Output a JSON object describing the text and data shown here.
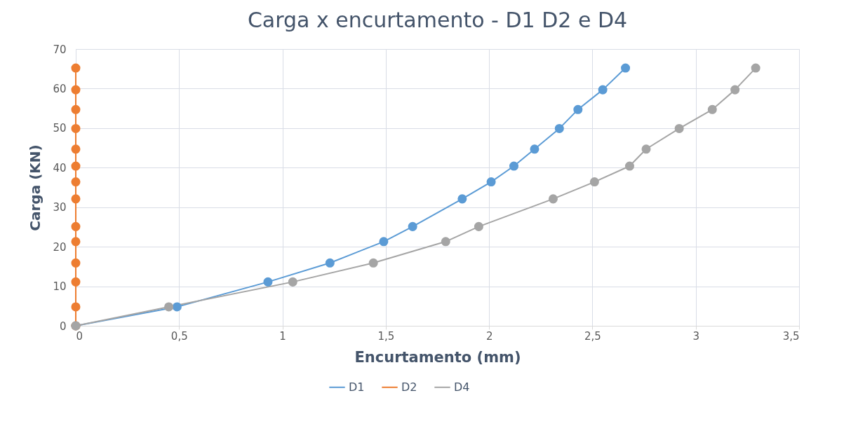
{
  "chart_data": {
    "type": "line",
    "title": "Carga x encurtamento - D1 D2 e D4",
    "xlabel": "Encurtamento (mm)",
    "ylabel": "Carga (KN)",
    "series": [
      {
        "name": "D1",
        "color": "#5b9bd5",
        "x": [
          0,
          0.49,
          0.93,
          1.23,
          1.49,
          1.63,
          1.87,
          2.01,
          2.12,
          2.22,
          2.34,
          2.43,
          2.55,
          2.66
        ],
        "values": [
          0,
          4.8,
          11.1,
          15.9,
          21.3,
          25.1,
          32.1,
          36.4,
          40.4,
          44.7,
          49.9,
          54.7,
          59.7,
          65.2
        ]
      },
      {
        "name": "D2",
        "color": "#ed7d31",
        "x": [
          0,
          0,
          0,
          0,
          0,
          0,
          0,
          0,
          0,
          0,
          0,
          0,
          0,
          0
        ],
        "values": [
          0,
          4.8,
          11.1,
          15.9,
          21.3,
          25.1,
          32.1,
          36.4,
          40.4,
          44.7,
          49.9,
          54.7,
          59.7,
          65.2
        ]
      },
      {
        "name": "D4",
        "color": "#a5a5a5",
        "x": [
          0,
          0.45,
          1.05,
          1.44,
          1.79,
          1.95,
          2.31,
          2.51,
          2.68,
          2.76,
          2.92,
          3.08,
          3.19,
          3.29
        ],
        "values": [
          0,
          4.8,
          11.1,
          15.9,
          21.3,
          25.1,
          32.1,
          36.4,
          40.4,
          44.7,
          49.9,
          54.7,
          59.7,
          65.2
        ]
      }
    ],
    "xlim": [
      0,
      3.5
    ],
    "xticks": [
      0,
      {
        "value": 0.5,
        "label": "0,5"
      },
      1,
      {
        "value": 1.5,
        "label": "1,5"
      },
      2,
      {
        "value": 2.5,
        "label": "2,5"
      },
      3,
      {
        "value": 3.5,
        "label": "3,5"
      }
    ],
    "ylim": [
      0,
      70
    ],
    "yticks": [
      0,
      10,
      20,
      30,
      40,
      50,
      60,
      70
    ],
    "grid": true,
    "legend": "bottom",
    "marker": "circle",
    "line_style": "solid"
  }
}
